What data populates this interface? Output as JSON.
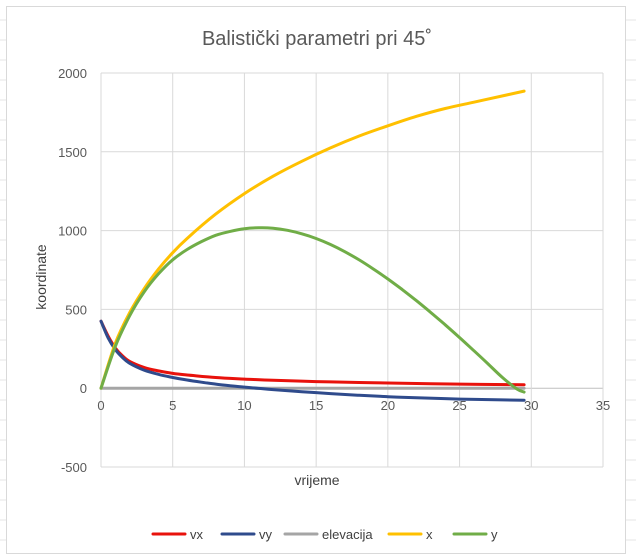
{
  "chart_data": {
    "type": "line",
    "title": "Balistički parametri pri 45˚",
    "xlabel": "vrijeme",
    "ylabel": "koordinate",
    "xlim": [
      0,
      35
    ],
    "ylim": [
      -500,
      2000
    ],
    "xticks": [
      "0",
      "5",
      "10",
      "15",
      "20",
      "25",
      "30",
      "35"
    ],
    "yticks": [
      "-500",
      "0",
      "500",
      "1000",
      "1500",
      "2000"
    ],
    "grid": true,
    "legend_position": "bottom",
    "series": [
      {
        "name": "vx",
        "color": "#e8120c",
        "x": [
          0,
          0.5,
          1,
          1.5,
          2,
          3,
          4,
          5,
          6,
          8,
          10,
          12,
          15,
          18,
          20,
          25,
          29.5
        ],
        "y": [
          425,
          330,
          255,
          205,
          170,
          132,
          110,
          94,
          84,
          68,
          58,
          50,
          42,
          36,
          33,
          26,
          22
        ]
      },
      {
        "name": "vy",
        "color": "#2f4b8c",
        "x": [
          0,
          0.5,
          1,
          1.5,
          2,
          3,
          4,
          5,
          6,
          7,
          8,
          9,
          10,
          11,
          12,
          14,
          16,
          18,
          20,
          22,
          25,
          28,
          29.5
        ],
        "y": [
          425,
          318,
          245,
          195,
          158,
          115,
          88,
          68,
          52,
          38,
          26,
          16,
          7,
          -1,
          -9,
          -22,
          -34,
          -45,
          -54,
          -61,
          -69,
          -74,
          -76
        ]
      },
      {
        "name": "elevacija",
        "color": "#a5a5a5",
        "x": [
          0,
          29.5
        ],
        "y": [
          0,
          0
        ]
      },
      {
        "name": "x",
        "color": "#ffc000",
        "x": [
          0,
          1,
          2,
          3,
          4,
          5,
          6,
          8,
          10,
          12,
          14,
          16,
          18,
          20,
          22,
          24,
          26,
          28,
          29.5
        ],
        "y": [
          0,
          285,
          480,
          630,
          755,
          860,
          950,
          1105,
          1235,
          1345,
          1440,
          1525,
          1600,
          1665,
          1725,
          1775,
          1815,
          1855,
          1885
        ]
      },
      {
        "name": "y",
        "color": "#70ad47",
        "x": [
          0,
          1,
          2,
          3,
          4,
          5,
          6,
          7,
          8,
          9,
          10,
          11,
          12,
          13,
          14,
          15,
          16,
          17,
          18,
          19,
          20,
          21,
          22,
          23,
          24,
          25,
          26,
          27,
          28,
          29,
          29.5
        ],
        "y": [
          0,
          265,
          460,
          610,
          725,
          815,
          880,
          930,
          970,
          995,
          1012,
          1018,
          1015,
          1002,
          980,
          950,
          912,
          866,
          814,
          756,
          693,
          626,
          555,
          480,
          402,
          321,
          238,
          153,
          67,
          -5,
          -25
        ]
      }
    ]
  }
}
